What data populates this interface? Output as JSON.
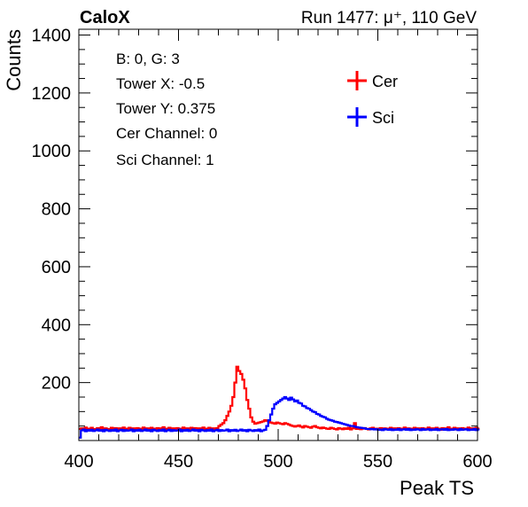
{
  "header": {
    "experiment": "CaloX",
    "run_text": "Run 1477:   μ⁺, 110 GeV"
  },
  "info_box": {
    "lines": [
      "B: 0, G: 3",
      "Tower X: -0.5",
      "Tower Y: 0.375",
      "Cer Channel: 0",
      "Sci Channel: 1"
    ]
  },
  "chart_data": {
    "type": "line",
    "xlabel": "Peak TS",
    "ylabel": "Counts",
    "xlim": [
      400,
      600
    ],
    "ylim": [
      0,
      1420
    ],
    "x_ticks": [
      400,
      450,
      500,
      550,
      600
    ],
    "y_ticks": [
      200,
      400,
      600,
      800,
      1000,
      1200,
      1400
    ],
    "legend_position": "top-right",
    "colors": {
      "Cer": "#ff0000",
      "Sci": "#0000ff"
    },
    "series": [
      {
        "name": "Cer",
        "x_start": 400,
        "bin_width": 1,
        "values": [
          40,
          42,
          38,
          45,
          41,
          39,
          44,
          40,
          37,
          43,
          41,
          46,
          39,
          42,
          40,
          38,
          44,
          41,
          43,
          39,
          42,
          40,
          45,
          38,
          41,
          44,
          39,
          42,
          40,
          43,
          41,
          38,
          45,
          40,
          42,
          39,
          44,
          41,
          37,
          43,
          40,
          42,
          46,
          39,
          41,
          44,
          38,
          42,
          40,
          43,
          41,
          39,
          45,
          40,
          42,
          38,
          44,
          41,
          43,
          39,
          42,
          40,
          45,
          38,
          41,
          44,
          39,
          42,
          40,
          43,
          50,
          55,
          60,
          70,
          85,
          100,
          120,
          150,
          200,
          255,
          240,
          230,
          210,
          180,
          140,
          110,
          80,
          65,
          58,
          60,
          62,
          64,
          66,
          70,
          68,
          64,
          62,
          60,
          58,
          62,
          60,
          58,
          56,
          60,
          58,
          55,
          52,
          50,
          48,
          50,
          52,
          48,
          45,
          50,
          48,
          46,
          44,
          48,
          50,
          46,
          44,
          42,
          45,
          43,
          41,
          40,
          44,
          42,
          40,
          38,
          43,
          41,
          39,
          42,
          40,
          44,
          38,
          42,
          60,
          40,
          42,
          39,
          41,
          43,
          40,
          38,
          42,
          44,
          39,
          41,
          40,
          43,
          38,
          42,
          41,
          39,
          44,
          40,
          42,
          38,
          43,
          41,
          39,
          45,
          40,
          42,
          38,
          41,
          44,
          39,
          42,
          40,
          43,
          41,
          38,
          45,
          40,
          42,
          39,
          44,
          41,
          37,
          43,
          40,
          42,
          46,
          39,
          41,
          44,
          38,
          42,
          40,
          43,
          41,
          39,
          45,
          40,
          42,
          38,
          44,
          41
        ]
      },
      {
        "name": "Sci",
        "x_start": 400,
        "bin_width": 1,
        "values": [
          10,
          35,
          38,
          32,
          36,
          34,
          37,
          33,
          35,
          38,
          34,
          36,
          32,
          37,
          35,
          33,
          36,
          34,
          38,
          32,
          35,
          37,
          33,
          36,
          34,
          35,
          38,
          32,
          36,
          34,
          37,
          33,
          35,
          38,
          34,
          36,
          32,
          37,
          35,
          33,
          36,
          34,
          38,
          32,
          35,
          37,
          33,
          36,
          34,
          35,
          38,
          32,
          36,
          34,
          37,
          33,
          35,
          38,
          34,
          36,
          32,
          37,
          35,
          33,
          36,
          34,
          38,
          32,
          35,
          37,
          33,
          36,
          34,
          35,
          38,
          32,
          36,
          34,
          37,
          33,
          35,
          38,
          34,
          36,
          32,
          37,
          35,
          33,
          36,
          34,
          38,
          32,
          35,
          37,
          50,
          70,
          90,
          110,
          125,
          130,
          135,
          140,
          145,
          150,
          145,
          140,
          148,
          142,
          135,
          138,
          130,
          128,
          120,
          118,
          112,
          110,
          105,
          100,
          98,
          92,
          90,
          85,
          82,
          80,
          75,
          72,
          70,
          68,
          65,
          64,
          62,
          60,
          58,
          56,
          54,
          52,
          50,
          50,
          48,
          46,
          45,
          44,
          43,
          42,
          40,
          40,
          39,
          40,
          38,
          39,
          37,
          38,
          36,
          40,
          38,
          37,
          39,
          36,
          38,
          37,
          40,
          36,
          38,
          39,
          37,
          40,
          36,
          38,
          37,
          39,
          38,
          36,
          40,
          37,
          38,
          39,
          36,
          38,
          37,
          40,
          36,
          38,
          39,
          37,
          40,
          36,
          38,
          37,
          39,
          38,
          36,
          40,
          37,
          38,
          39,
          36,
          38,
          37,
          40,
          36,
          38
        ]
      }
    ]
  }
}
